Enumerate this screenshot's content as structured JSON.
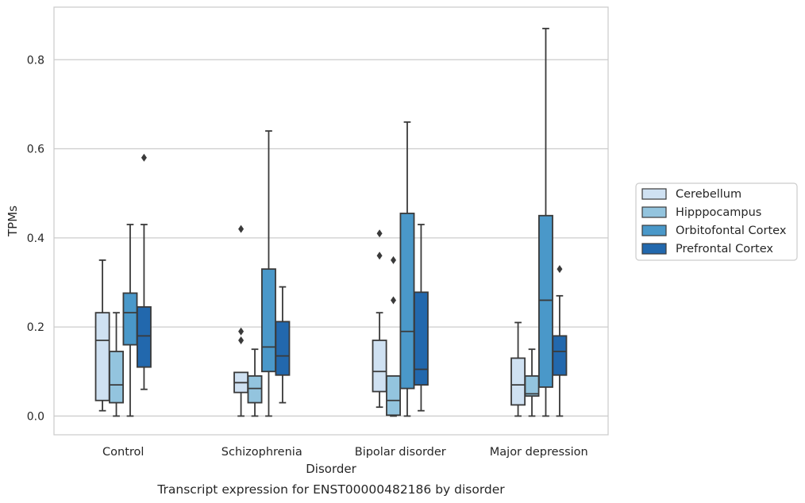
{
  "chart_data": {
    "type": "boxplot",
    "title": "",
    "caption": "Transcript expression for ENST00000482186 by disorder",
    "xlabel": "Disorder",
    "ylabel": "TPMs",
    "ylim": [
      -0.042,
      0.918
    ],
    "yticks": [
      0.0,
      0.2,
      0.4,
      0.6,
      0.8
    ],
    "yticklabels": [
      "0.0",
      "0.2",
      "0.4",
      "0.6",
      "0.8"
    ],
    "grid": "y",
    "legend_position": "right",
    "categories": [
      "Control",
      "Schizophrenia",
      "Bipolar disorder",
      "Major depression"
    ],
    "series": [
      {
        "name": "Cerebellum",
        "color": "#cfe1f2",
        "boxes": [
          {
            "whislo": 0.012,
            "q1": 0.035,
            "med": 0.17,
            "q3": 0.232,
            "whishi": 0.35,
            "fliers": []
          },
          {
            "whislo": 0.0,
            "q1": 0.053,
            "med": 0.075,
            "q3": 0.098,
            "whishi": 0.098,
            "fliers": [
              0.17,
              0.19,
              0.42
            ]
          },
          {
            "whislo": 0.02,
            "q1": 0.055,
            "med": 0.1,
            "q3": 0.17,
            "whishi": 0.232,
            "fliers": [
              0.36,
              0.41
            ]
          },
          {
            "whislo": 0.0,
            "q1": 0.025,
            "med": 0.07,
            "q3": 0.13,
            "whishi": 0.21,
            "fliers": []
          }
        ]
      },
      {
        "name": "Hipppocampus",
        "color": "#93c4de",
        "boxes": [
          {
            "whislo": 0.0,
            "q1": 0.03,
            "med": 0.07,
            "q3": 0.145,
            "whishi": 0.232,
            "fliers": []
          },
          {
            "whislo": 0.0,
            "q1": 0.03,
            "med": 0.062,
            "q3": 0.09,
            "whishi": 0.15,
            "fliers": []
          },
          {
            "whislo": 0.0,
            "q1": 0.002,
            "med": 0.035,
            "q3": 0.09,
            "whishi": 0.09,
            "fliers": [
              0.26,
              0.35
            ]
          },
          {
            "whislo": 0.0,
            "q1": 0.045,
            "med": 0.05,
            "q3": 0.09,
            "whishi": 0.15,
            "fliers": []
          }
        ]
      },
      {
        "name": "Orbitofontal Cortex",
        "color": "#4a98c9",
        "boxes": [
          {
            "whislo": 0.0,
            "q1": 0.16,
            "med": 0.232,
            "q3": 0.276,
            "whishi": 0.43,
            "fliers": []
          },
          {
            "whislo": 0.0,
            "q1": 0.1,
            "med": 0.155,
            "q3": 0.33,
            "whishi": 0.64,
            "fliers": []
          },
          {
            "whislo": 0.0,
            "q1": 0.062,
            "med": 0.19,
            "q3": 0.455,
            "whishi": 0.66,
            "fliers": []
          },
          {
            "whislo": 0.0,
            "q1": 0.065,
            "med": 0.26,
            "q3": 0.45,
            "whishi": 0.87,
            "fliers": []
          }
        ]
      },
      {
        "name": "Prefrontal Cortex",
        "color": "#2268ad",
        "boxes": [
          {
            "whislo": 0.06,
            "q1": 0.11,
            "med": 0.18,
            "q3": 0.245,
            "whishi": 0.43,
            "fliers": [
              0.58
            ]
          },
          {
            "whislo": 0.03,
            "q1": 0.092,
            "med": 0.135,
            "q3": 0.212,
            "whishi": 0.29,
            "fliers": []
          },
          {
            "whislo": 0.012,
            "q1": 0.07,
            "med": 0.105,
            "q3": 0.278,
            "whishi": 0.43,
            "fliers": []
          },
          {
            "whislo": 0.0,
            "q1": 0.092,
            "med": 0.145,
            "q3": 0.18,
            "whishi": 0.27,
            "fliers": [
              0.33
            ]
          }
        ]
      }
    ]
  }
}
